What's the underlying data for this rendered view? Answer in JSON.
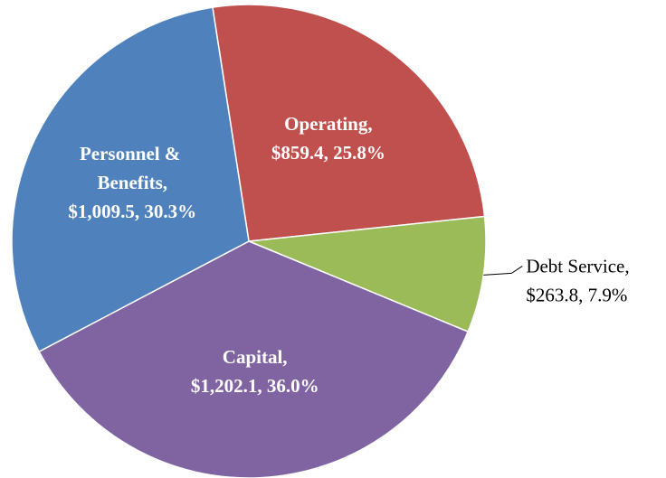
{
  "chart_data": {
    "type": "pie",
    "categories": [
      "Operating,",
      "Debt Service,",
      "Capital,",
      "Personnel & Benefits,"
    ],
    "values": [
      859.4,
      263.8,
      1202.1,
      1009.5
    ],
    "value_labels": [
      "$859.4, 25.8%",
      "$263.8, 7.9%",
      "$1,202.1, 36.0%",
      "$1,009.5, 30.3%"
    ],
    "colors": [
      "#c0504d",
      "#9bbb59",
      "#8064a2",
      "#4f81bd"
    ]
  }
}
